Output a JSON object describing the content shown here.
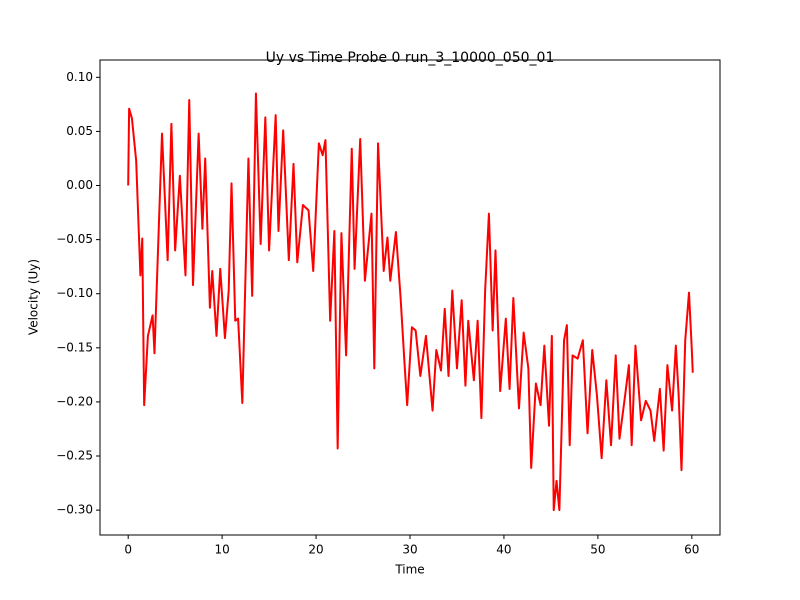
{
  "chart_data": {
    "type": "line",
    "title": "Uy vs Time Probe 0 run_3_10000_050_01",
    "x_label": "Time",
    "y_label": "Velocity (Uy)",
    "x": [
      0,
      0.1,
      0.4,
      0.85,
      1.3,
      1.5,
      1.7,
      2.1,
      2.6,
      2.8,
      3.6,
      4.2,
      4.6,
      5.0,
      5.5,
      6.1,
      6.5,
      6.9,
      7.5,
      7.9,
      8.2,
      8.7,
      8.95,
      9.4,
      9.8,
      10.3,
      10.7,
      11.0,
      11.4,
      11.7,
      12.15,
      12.8,
      13.2,
      13.6,
      14.1,
      14.6,
      15.0,
      15.7,
      16.0,
      16.5,
      17.1,
      17.6,
      18.0,
      18.6,
      19.2,
      19.7,
      20.3,
      20.7,
      21.0,
      21.5,
      21.95,
      22.3,
      22.7,
      23.2,
      23.8,
      24.1,
      24.7,
      25.2,
      25.9,
      26.2,
      26.6,
      27.2,
      27.6,
      27.9,
      28.5,
      29.0,
      29.4,
      29.7,
      30.2,
      30.6,
      31.1,
      31.7,
      32.4,
      32.8,
      33.3,
      33.7,
      34.1,
      34.5,
      35.0,
      35.5,
      35.9,
      36.2,
      36.8,
      37.2,
      37.6,
      38.0,
      38.4,
      38.8,
      39.1,
      39.6,
      40.2,
      40.6,
      41.0,
      41.6,
      42.1,
      42.6,
      42.9,
      43.4,
      43.9,
      44.3,
      44.8,
      45.1,
      45.3,
      45.6,
      45.9,
      46.4,
      46.7,
      47.0,
      47.3,
      47.85,
      48.4,
      48.9,
      49.4,
      49.9,
      50.4,
      50.9,
      51.4,
      51.9,
      52.3,
      52.9,
      53.3,
      53.6,
      54.0,
      54.6,
      55.1,
      55.6,
      56.0,
      56.6,
      57.0,
      57.4,
      57.9,
      58.3,
      58.6,
      58.9,
      59.3,
      59.7,
      60.0,
      60.1
    ],
    "series": [
      {
        "name": "Uy",
        "color": "#ff0000",
        "values": [
          0,
          0.071,
          0.062,
          0.023,
          -0.083,
          -0.049,
          -0.203,
          -0.139,
          -0.12,
          -0.155,
          0.048,
          -0.069,
          0.057,
          -0.06,
          0.009,
          -0.083,
          0.079,
          -0.092,
          0.048,
          -0.04,
          0.025,
          -0.113,
          -0.079,
          -0.139,
          -0.077,
          -0.141,
          -0.097,
          0.002,
          -0.125,
          -0.123,
          -0.201,
          0.025,
          -0.102,
          0.085,
          -0.054,
          0.063,
          -0.06,
          0.065,
          -0.042,
          0.051,
          -0.069,
          0.02,
          -0.071,
          -0.018,
          -0.023,
          -0.079,
          0.039,
          0.028,
          0.042,
          -0.125,
          -0.042,
          -0.243,
          -0.044,
          -0.157,
          0.034,
          -0.077,
          0.043,
          -0.088,
          -0.026,
          -0.169,
          0.039,
          -0.079,
          -0.048,
          -0.088,
          -0.043,
          -0.104,
          -0.162,
          -0.203,
          -0.131,
          -0.134,
          -0.176,
          -0.139,
          -0.208,
          -0.152,
          -0.171,
          -0.114,
          -0.176,
          -0.097,
          -0.169,
          -0.106,
          -0.185,
          -0.125,
          -0.18,
          -0.125,
          -0.215,
          -0.097,
          -0.026,
          -0.134,
          -0.06,
          -0.19,
          -0.123,
          -0.188,
          -0.104,
          -0.206,
          -0.136,
          -0.169,
          -0.261,
          -0.183,
          -0.203,
          -0.148,
          -0.222,
          -0.139,
          -0.3,
          -0.273,
          -0.3,
          -0.143,
          -0.129,
          -0.24,
          -0.157,
          -0.16,
          -0.143,
          -0.229,
          -0.152,
          -0.194,
          -0.252,
          -0.18,
          -0.24,
          -0.157,
          -0.234,
          -0.194,
          -0.166,
          -0.24,
          -0.148,
          -0.217,
          -0.199,
          -0.208,
          -0.236,
          -0.188,
          -0.245,
          -0.166,
          -0.208,
          -0.148,
          -0.194,
          -0.263,
          -0.143,
          -0.099,
          -0.152,
          -0.173
        ]
      }
    ],
    "xlim": [
      -3,
      63
    ],
    "ylim": [
      -0.323,
      0.116
    ],
    "xticks": [
      0,
      10,
      20,
      30,
      40,
      50,
      60
    ],
    "yticks": [
      {
        "value": -0.3,
        "label": "−0.30"
      },
      {
        "value": -0.25,
        "label": "−0.25"
      },
      {
        "value": -0.2,
        "label": "−0.20"
      },
      {
        "value": -0.15,
        "label": "−0.15"
      },
      {
        "value": -0.1,
        "label": "−0.10"
      },
      {
        "value": -0.05,
        "label": "−0.05"
      },
      {
        "value": 0,
        "label": "0.00"
      },
      {
        "value": 0.05,
        "label": "0.05"
      },
      {
        "value": 0.1,
        "label": "0.10"
      }
    ]
  }
}
